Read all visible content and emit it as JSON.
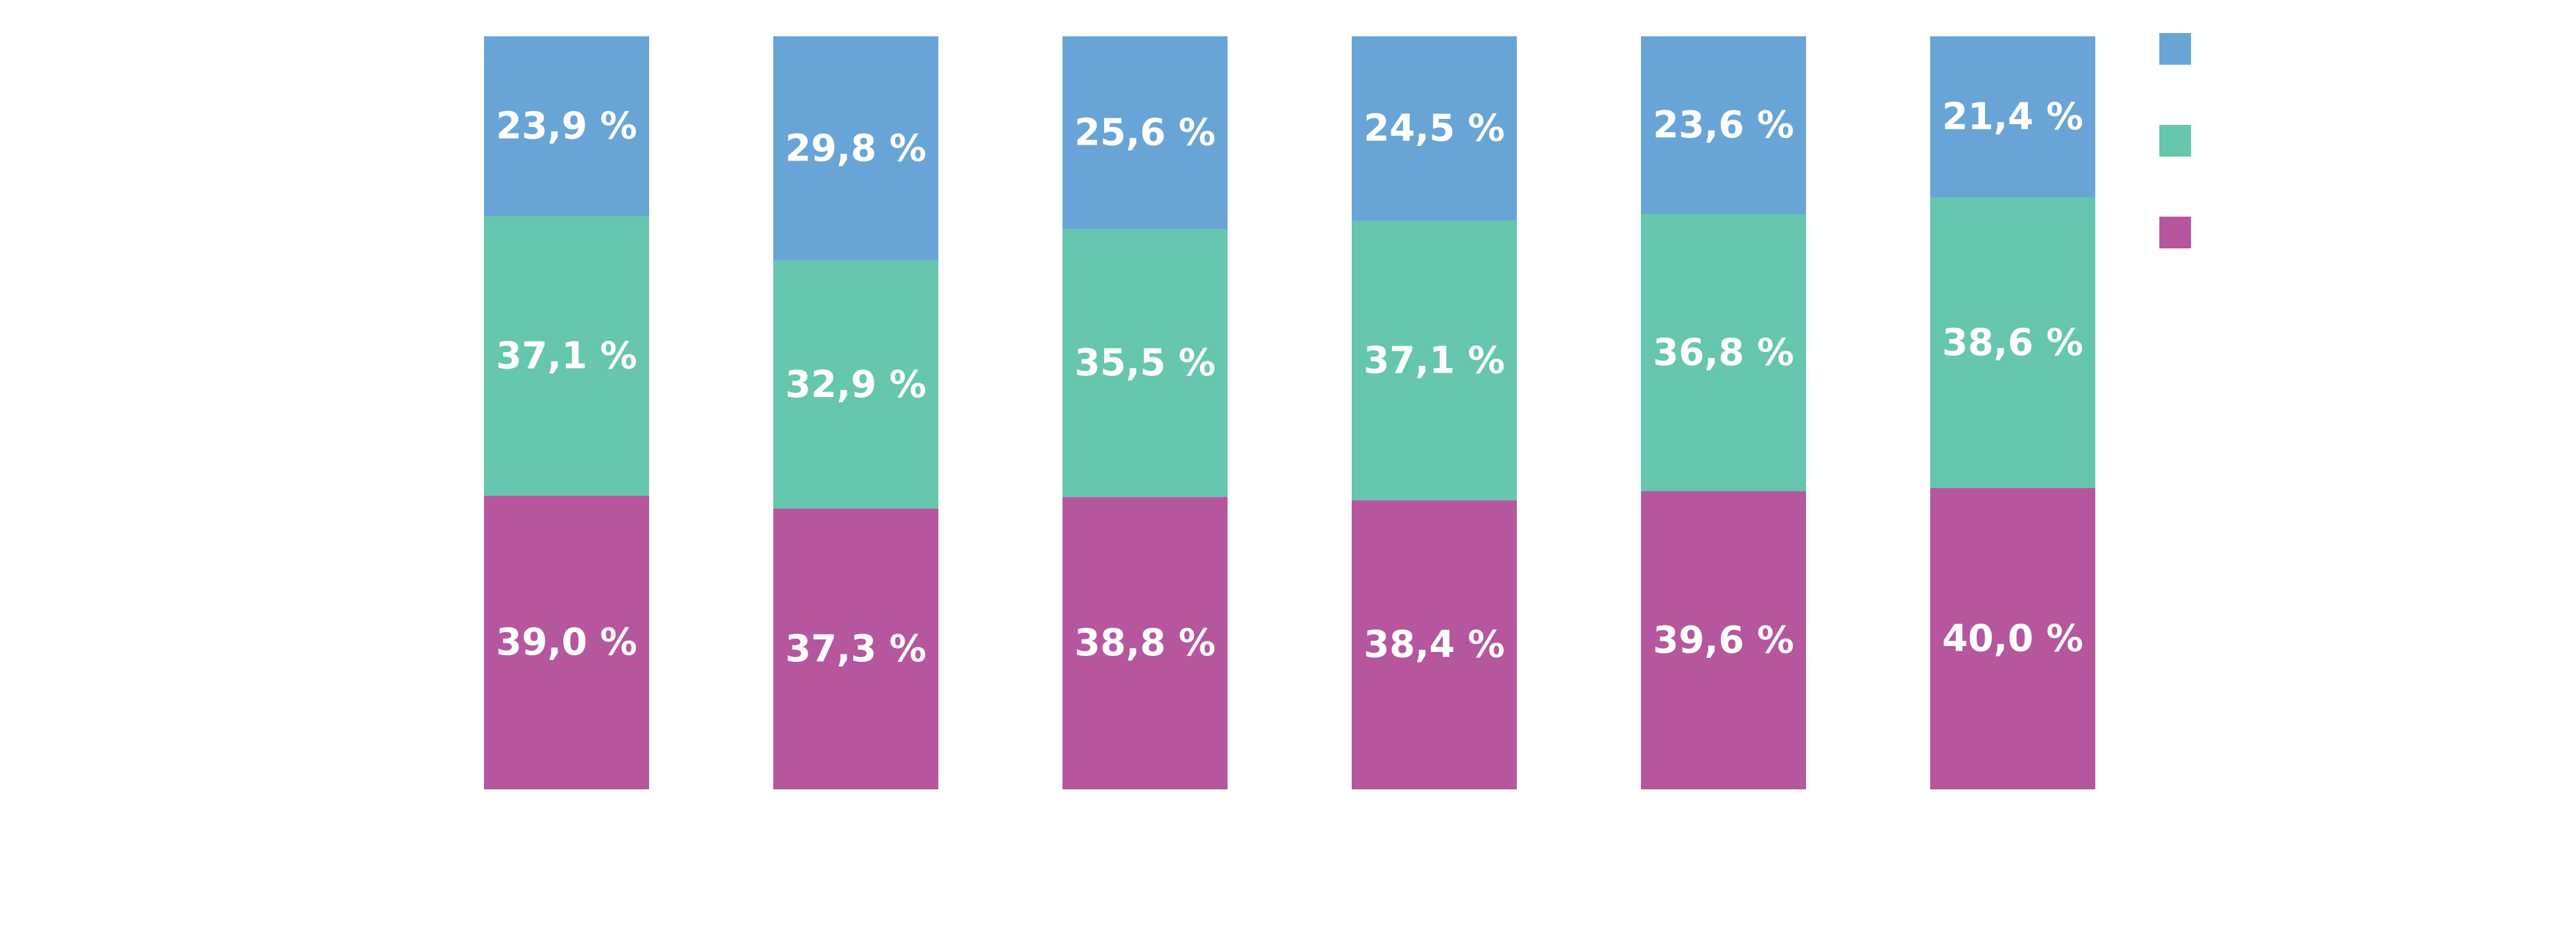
{
  "chart_data": {
    "type": "bar",
    "stacked": true,
    "percent_stacked": true,
    "categories": [
      "",
      "",
      "",
      "",
      "",
      ""
    ],
    "series": [
      {
        "color": "#b5569f",
        "values": [
          39.0,
          37.3,
          38.8,
          38.4,
          39.6,
          40.0
        ],
        "labels": [
          "39,0 %",
          "37,3 %",
          "38,8 %",
          "38,4 %",
          "39,6 %",
          "40,0 %"
        ]
      },
      {
        "color": "#66c6ae",
        "values": [
          37.1,
          32.9,
          35.5,
          37.1,
          36.8,
          38.6
        ],
        "labels": [
          "37,1 %",
          "32,9 %",
          "35,5 %",
          "37,1 %",
          "36,8 %",
          "38,6 %"
        ]
      },
      {
        "color": "#68a5d6",
        "values": [
          23.9,
          29.8,
          25.6,
          24.5,
          23.6,
          21.4
        ],
        "labels": [
          "23,9 %",
          "29,8 %",
          "25,6 %",
          "24,5 %",
          "23,6 %",
          "21,4 %"
        ]
      }
    ],
    "legend_order": [
      2,
      1,
      0
    ],
    "legend_position": "top-right",
    "ylim": [
      0,
      100
    ],
    "grid": false,
    "axes_visible": false,
    "title": "",
    "xlabel": "",
    "ylabel": ""
  }
}
